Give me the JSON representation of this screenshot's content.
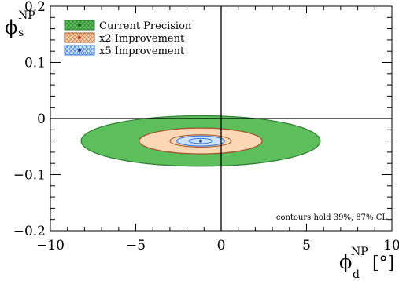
{
  "chart_data": {
    "type": "contour",
    "xlim": [
      -10,
      10
    ],
    "ylim": [
      -0.2,
      0.2
    ],
    "xticks": [
      -10,
      -5,
      0,
      5,
      10
    ],
    "xtick_labels": [
      "−10",
      "−5",
      "0",
      "5",
      "10"
    ],
    "yticks": [
      -0.2,
      -0.1,
      0,
      0.1,
      0.2
    ],
    "ytick_labels": [
      "−0.2",
      "−0.1",
      "0",
      "0.1",
      "0.2"
    ],
    "xlabel": {
      "base": "ϕ",
      "sup": "NP",
      "sub": "d",
      "unit": "[°]"
    },
    "ylabel": {
      "base": "ϕ",
      "sup": "NP",
      "sub": "s"
    },
    "grid": false,
    "reference_lines": {
      "x": 0,
      "y": 0
    },
    "annotation": "contours hold 39%, 87% CL",
    "legend": {
      "position": "top-left",
      "entries": [
        "Current Precision",
        "x2 Improvement",
        "x5 Improvement"
      ]
    },
    "series": [
      {
        "name": "Current Precision",
        "center": [
          -1.2,
          -0.04
        ],
        "contours": [
          {
            "cl": "87%",
            "x_halfwidth": 7.0,
            "y_halfwidth": 0.045,
            "fill": "#5cbf5c",
            "stroke": "#2e7d32"
          },
          {
            "cl": "39%",
            "x_halfwidth": 3.6,
            "y_halfwidth": 0.023,
            "fill": "#5cbf5c",
            "stroke": "#2e7d32"
          }
        ],
        "marker_color": "#1b5e20"
      },
      {
        "name": "x2 Improvement",
        "center": [
          -1.2,
          -0.04
        ],
        "contours": [
          {
            "cl": "87%",
            "x_halfwidth": 3.6,
            "y_halfwidth": 0.023,
            "fill": "#fbd7b5",
            "stroke": "#a0522d"
          },
          {
            "cl": "39%",
            "x_halfwidth": 1.8,
            "y_halfwidth": 0.011,
            "fill": "#fbd7b5",
            "stroke": "#a0522d"
          }
        ],
        "marker_color": "#c0392b"
      },
      {
        "name": "x5 Improvement",
        "center": [
          -1.2,
          -0.04
        ],
        "contours": [
          {
            "cl": "87%",
            "x_halfwidth": 1.4,
            "y_halfwidth": 0.009,
            "fill": "#cfe3f6",
            "stroke": "#3a7bd5"
          },
          {
            "cl": "39%",
            "x_halfwidth": 0.7,
            "y_halfwidth": 0.0045,
            "fill": "#cfe3f6",
            "stroke": "#3a7bd5"
          }
        ],
        "marker_color": "#2c3e9f"
      }
    ]
  }
}
